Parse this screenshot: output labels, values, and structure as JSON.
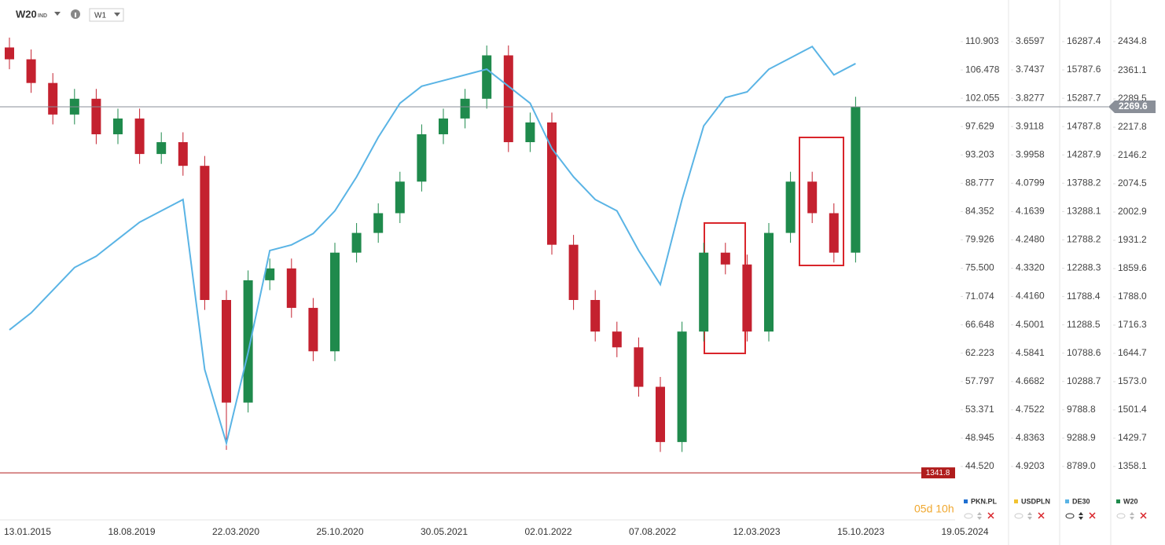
{
  "chart_data": {
    "type": "candlestick",
    "symbol": "W20",
    "symbol_tag": "IND",
    "interval": "W1",
    "timer": "05d 10h",
    "xticks": [
      "13.01.2015",
      "18.08.2019",
      "22.03.2020",
      "25.10.2020",
      "30.05.2021",
      "02.01.2022",
      "07.08.2022",
      "12.03.2023",
      "15.10.2023",
      "19.05.2024"
    ],
    "series": [
      {
        "name": "W20",
        "up_color": "#1f8a4c",
        "down_color": "#c4212f",
        "open": [
          2420,
          2390,
          2330,
          2250,
          2290,
          2200,
          2240,
          2150,
          2180,
          2120,
          1780,
          1520,
          1830,
          1860,
          1760,
          1650,
          1900,
          1950,
          2000,
          2080,
          2200,
          2240,
          2290,
          2400,
          2180,
          2230,
          1920,
          1780,
          1700,
          1660,
          1560,
          1420,
          1700,
          1900,
          1870,
          1700,
          1950,
          2080,
          2000,
          1900
        ],
        "high": [
          2445,
          2415,
          2355,
          2315,
          2315,
          2265,
          2265,
          2205,
          2205,
          2145,
          1805,
          1855,
          1885,
          1885,
          1785,
          1925,
          1975,
          2025,
          2105,
          2225,
          2265,
          2315,
          2425,
          2425,
          2255,
          2255,
          1945,
          1805,
          1725,
          1685,
          1585,
          1725,
          1925,
          1925,
          1895,
          1975,
          2105,
          2105,
          2025,
          2295
        ],
        "low": [
          2365,
          2305,
          2225,
          2225,
          2175,
          2175,
          2125,
          2125,
          2095,
          1755,
          1400,
          1495,
          1805,
          1735,
          1625,
          1625,
          1875,
          1925,
          1975,
          2055,
          2175,
          2215,
          2265,
          2155,
          2155,
          1895,
          1755,
          1675,
          1635,
          1535,
          1395,
          1395,
          1675,
          1845,
          1675,
          1675,
          1925,
          1975,
          1875,
          1875
        ],
        "close": [
          2390,
          2330,
          2250,
          2290,
          2200,
          2240,
          2150,
          2180,
          2120,
          1780,
          1520,
          1830,
          1860,
          1760,
          1650,
          1900,
          1950,
          2000,
          2080,
          2200,
          2240,
          2290,
          2400,
          2180,
          2230,
          1920,
          1780,
          1700,
          1660,
          1560,
          1420,
          1700,
          1900,
          1870,
          1700,
          1950,
          2080,
          2000,
          1900,
          2269.6
        ]
      },
      {
        "name": "DE30",
        "color": "#5ab4e5",
        "values": [
          11200,
          11500,
          11900,
          12300,
          12500,
          12800,
          13100,
          13300,
          13500,
          10500,
          9200,
          10800,
          12600,
          12700,
          12900,
          13300,
          13900,
          14600,
          15200,
          15500,
          15600,
          15700,
          15800,
          15500,
          15200,
          14400,
          13900,
          13500,
          13300,
          12600,
          12000,
          13500,
          14800,
          15300,
          15400,
          15800,
          16000,
          16200,
          15700,
          15900
        ]
      }
    ],
    "axes": [
      {
        "name": "PKN.PL",
        "color": "#1f6fd1",
        "ylim": [
          36.42,
          113.73
        ],
        "ticks": [
          110.903,
          106.478,
          102.055,
          97.629,
          93.203,
          88.777,
          84.352,
          79.926,
          {
            "value": 75.5,
            "label": "75.500"
          },
          71.074,
          66.648,
          62.223,
          57.797,
          53.371,
          48.945,
          {
            "value": 44.52,
            "label": "44.520"
          }
        ]
      },
      {
        "name": "USDPLN",
        "color": "#f2c230",
        "ylim": [
          5.0741,
          3.6061
        ],
        "ticks": [
          3.6597,
          3.7437,
          3.8277,
          3.9118,
          3.9958,
          4.0799,
          4.1639,
          {
            "value": 4.248,
            "label": "4.2480"
          },
          {
            "value": 4.332,
            "label": "4.3320"
          },
          {
            "value": 4.416,
            "label": "4.4160"
          },
          4.5001,
          4.5841,
          4.6682,
          4.7522,
          4.8363,
          4.9203
        ]
      },
      {
        "name": "DE30",
        "color": "#5ab4e5",
        "ylim": [
          7874,
          16606
        ],
        "ticks": [
          16287.4,
          15787.6,
          15287.7,
          14787.8,
          14287.9,
          13788.2,
          13288.1,
          12788.2,
          12288.3,
          11788.4,
          11288.5,
          10788.6,
          10288.7,
          9788.8,
          9288.9,
          {
            "value": 8789,
            "label": "8789.0"
          }
        ]
      },
      {
        "name": "W20",
        "color": "#1f8a4c",
        "ylim": [
          1226.7,
          2480.6
        ],
        "ticks": [
          2434.8,
          2361.1,
          2289.5,
          2217.8,
          2146.2,
          2074.5,
          2002.9,
          1931.2,
          1859.6,
          {
            "value": 1788,
            "label": "1788.0"
          },
          1716.3,
          1644.7,
          {
            "value": 1573,
            "label": "1573.0"
          },
          1501.4,
          1429.7,
          1358.1
        ]
      }
    ],
    "levels": [
      {
        "value": 1341.8,
        "color": "#b01c1c"
      }
    ]
  }
}
